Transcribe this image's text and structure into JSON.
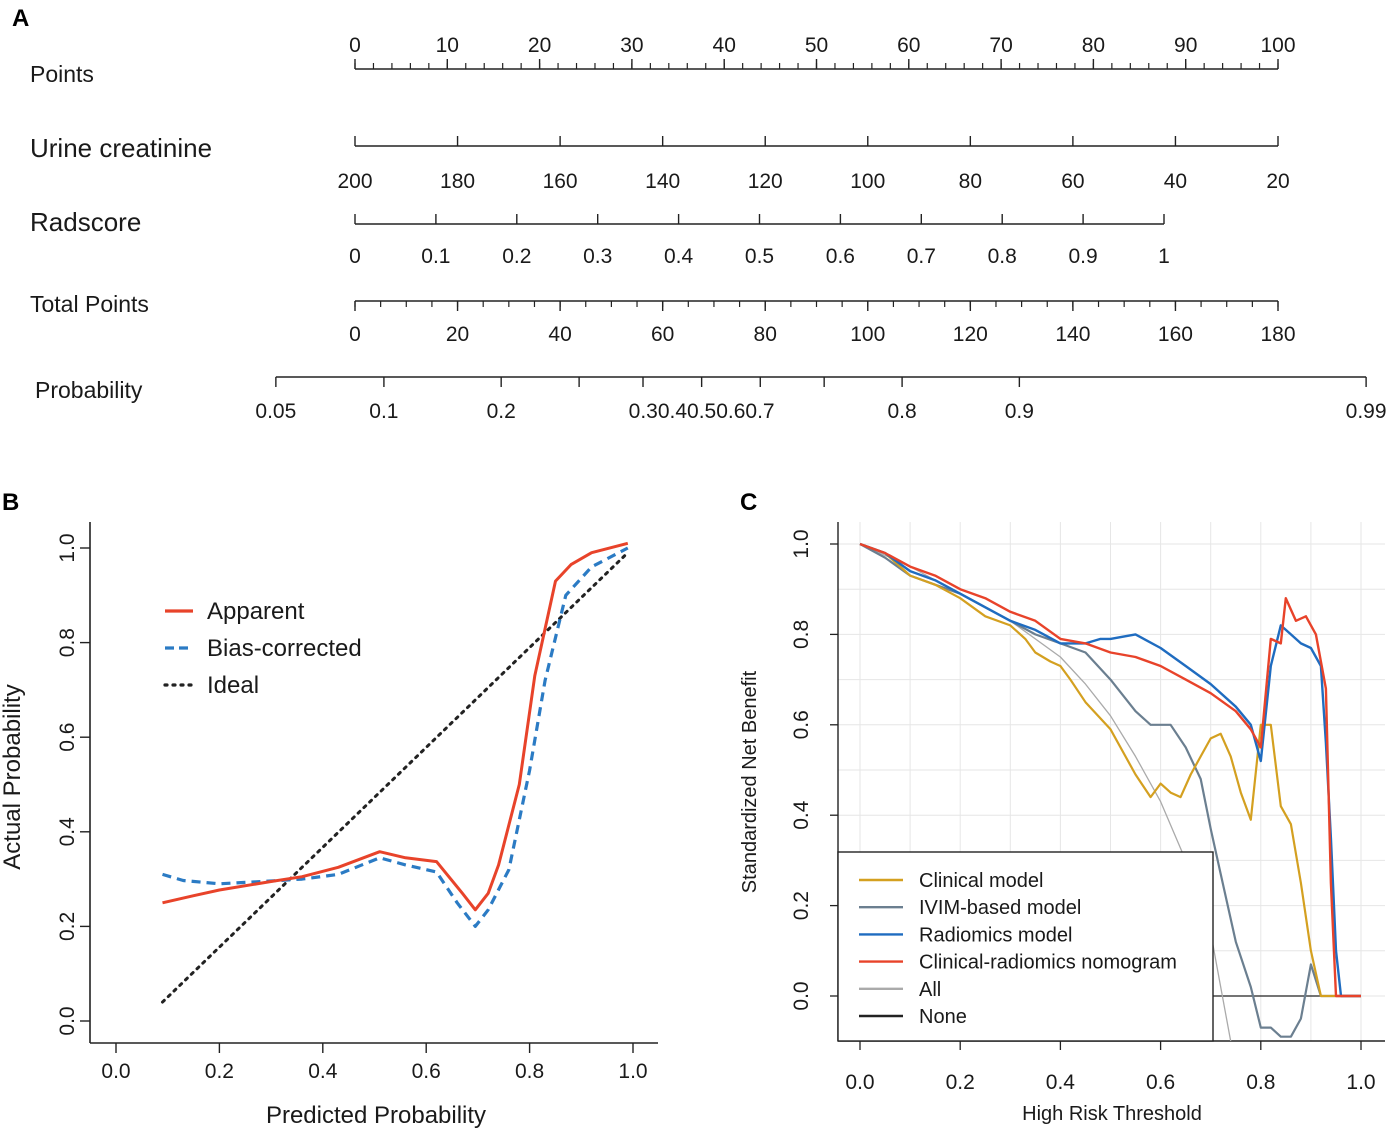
{
  "panels": {
    "a_label": "A",
    "b_label": "B",
    "c_label": "C"
  },
  "chart_data": [
    {
      "id": "A",
      "type": "nomogram",
      "rows": [
        {
          "name": "Points",
          "ticks": [
            {
              "v": 0,
              "label": "0"
            },
            {
              "v": 10,
              "label": "10"
            },
            {
              "v": 20,
              "label": "20"
            },
            {
              "v": 30,
              "label": "30"
            },
            {
              "v": 40,
              "label": "40"
            },
            {
              "v": 50,
              "label": "50"
            },
            {
              "v": 60,
              "label": "60"
            },
            {
              "v": 70,
              "label": "70"
            },
            {
              "v": 80,
              "label": "80"
            },
            {
              "v": 90,
              "label": "90"
            },
            {
              "v": 100,
              "label": "100"
            }
          ],
          "minor_step": 2
        },
        {
          "name": "Urine creatinine",
          "ticks": [
            {
              "v": 200,
              "label": "200"
            },
            {
              "v": 180,
              "label": "180"
            },
            {
              "v": 160,
              "label": "160"
            },
            {
              "v": 140,
              "label": "140"
            },
            {
              "v": 120,
              "label": "120"
            },
            {
              "v": 100,
              "label": "100"
            },
            {
              "v": 80,
              "label": "80"
            },
            {
              "v": 60,
              "label": "60"
            },
            {
              "v": 40,
              "label": "40"
            },
            {
              "v": 20,
              "label": "20"
            }
          ]
        },
        {
          "name": "Radscore",
          "ticks": [
            {
              "v": 0,
              "label": "0"
            },
            {
              "v": 0.1,
              "label": "0.1"
            },
            {
              "v": 0.2,
              "label": "0.2"
            },
            {
              "v": 0.3,
              "label": "0.3"
            },
            {
              "v": 0.4,
              "label": "0.4"
            },
            {
              "v": 0.5,
              "label": "0.5"
            },
            {
              "v": 0.6,
              "label": "0.6"
            },
            {
              "v": 0.7,
              "label": "0.7"
            },
            {
              "v": 0.8,
              "label": "0.8"
            },
            {
              "v": 0.9,
              "label": "0.9"
            },
            {
              "v": 1,
              "label": "1"
            }
          ]
        },
        {
          "name": "Total Points",
          "ticks": [
            {
              "v": 0,
              "label": "0"
            },
            {
              "v": 20,
              "label": "20"
            },
            {
              "v": 40,
              "label": "40"
            },
            {
              "v": 60,
              "label": "60"
            },
            {
              "v": 80,
              "label": "80"
            },
            {
              "v": 100,
              "label": "100"
            },
            {
              "v": 120,
              "label": "120"
            },
            {
              "v": 140,
              "label": "140"
            },
            {
              "v": 160,
              "label": "160"
            },
            {
              "v": 180,
              "label": "180"
            }
          ],
          "minor_step": 5
        },
        {
          "name": "Probability",
          "ticks": [
            {
              "p": 0.05,
              "label": "0.05"
            },
            {
              "p": 0.1,
              "label": "0.1"
            },
            {
              "p": 0.2,
              "label": "0.2"
            },
            {
              "p": 0.3,
              "label": "0.3"
            },
            {
              "p": 0.4,
              "label": "0.4"
            },
            {
              "p": 0.5,
              "label": "0.5"
            },
            {
              "p": 0.6,
              "label": "0.6"
            },
            {
              "p": 0.7,
              "label": "0.7"
            },
            {
              "p": 0.8,
              "label": "0.8"
            },
            {
              "p": 0.9,
              "label": "0.9"
            },
            {
              "p": 0.99,
              "label": "0.99"
            }
          ],
          "label_text": [
            "0.05",
            "0.1",
            "0.2",
            "0.30.40.50.60.7",
            "0.8",
            "0.9",
            "0.99"
          ]
        }
      ]
    },
    {
      "id": "B",
      "type": "line",
      "title": "",
      "xlabel": "Predicted Probability",
      "ylabel": "Actual Probability",
      "xlim": [
        0,
        1
      ],
      "ylim": [
        0,
        1
      ],
      "xticks": [
        "0.0",
        "0.2",
        "0.4",
        "0.6",
        "0.8",
        "1.0"
      ],
      "yticks": [
        "0.0",
        "0.2",
        "0.4",
        "0.6",
        "0.8",
        "1.0"
      ],
      "legend_position": "top-left",
      "series": [
        {
          "name": "Apparent",
          "color": "#e8432a",
          "style": "solid",
          "points": [
            [
              0.09,
              0.25
            ],
            [
              0.15,
              0.265
            ],
            [
              0.2,
              0.277
            ],
            [
              0.3,
              0.295
            ],
            [
              0.36,
              0.305
            ],
            [
              0.43,
              0.325
            ],
            [
              0.51,
              0.358
            ],
            [
              0.56,
              0.345
            ],
            [
              0.62,
              0.337
            ],
            [
              0.67,
              0.27
            ],
            [
              0.695,
              0.235
            ],
            [
              0.72,
              0.27
            ],
            [
              0.74,
              0.33
            ],
            [
              0.78,
              0.5
            ],
            [
              0.81,
              0.73
            ],
            [
              0.85,
              0.93
            ],
            [
              0.88,
              0.965
            ],
            [
              0.92,
              0.99
            ],
            [
              0.99,
              1.01
            ]
          ]
        },
        {
          "name": "Bias-corrected",
          "color": "#2b7bc4",
          "style": "dashed",
          "points": [
            [
              0.09,
              0.31
            ],
            [
              0.13,
              0.297
            ],
            [
              0.2,
              0.29
            ],
            [
              0.3,
              0.296
            ],
            [
              0.36,
              0.3
            ],
            [
              0.43,
              0.31
            ],
            [
              0.51,
              0.345
            ],
            [
              0.56,
              0.33
            ],
            [
              0.62,
              0.315
            ],
            [
              0.66,
              0.25
            ],
            [
              0.695,
              0.2
            ],
            [
              0.72,
              0.235
            ],
            [
              0.76,
              0.32
            ],
            [
              0.8,
              0.53
            ],
            [
              0.83,
              0.72
            ],
            [
              0.87,
              0.9
            ],
            [
              0.92,
              0.96
            ],
            [
              0.99,
              1.0
            ]
          ]
        },
        {
          "name": "Ideal",
          "color": "#222222",
          "style": "dotted",
          "points": [
            [
              0.09,
              0.04
            ],
            [
              0.99,
              0.99
            ]
          ]
        }
      ]
    },
    {
      "id": "C",
      "type": "line",
      "title": "",
      "xlabel": "High Risk Threshold",
      "ylabel": "Standardized Net Benefit",
      "xlim": [
        0,
        1
      ],
      "ylim": [
        -0.1,
        1.0
      ],
      "xticks": [
        "0.0",
        "0.2",
        "0.4",
        "0.6",
        "0.8",
        "1.0"
      ],
      "yticks": [
        "0.0",
        "0.2",
        "0.4",
        "0.6",
        "0.8",
        "1.0"
      ],
      "grid": true,
      "legend_position": "bottom-left",
      "series": [
        {
          "name": "Clinical model",
          "color": "#d4a020",
          "points": [
            [
              0,
              1.0
            ],
            [
              0.05,
              0.98
            ],
            [
              0.1,
              0.93
            ],
            [
              0.15,
              0.91
            ],
            [
              0.2,
              0.88
            ],
            [
              0.25,
              0.84
            ],
            [
              0.3,
              0.82
            ],
            [
              0.33,
              0.79
            ],
            [
              0.35,
              0.76
            ],
            [
              0.38,
              0.74
            ],
            [
              0.4,
              0.73
            ],
            [
              0.42,
              0.7
            ],
            [
              0.45,
              0.65
            ],
            [
              0.5,
              0.59
            ],
            [
              0.52,
              0.55
            ],
            [
              0.55,
              0.49
            ],
            [
              0.58,
              0.44
            ],
            [
              0.6,
              0.47
            ],
            [
              0.62,
              0.45
            ],
            [
              0.64,
              0.44
            ],
            [
              0.66,
              0.49
            ],
            [
              0.68,
              0.53
            ],
            [
              0.7,
              0.57
            ],
            [
              0.72,
              0.58
            ],
            [
              0.74,
              0.53
            ],
            [
              0.76,
              0.45
            ],
            [
              0.78,
              0.39
            ],
            [
              0.8,
              0.6
            ],
            [
              0.82,
              0.6
            ],
            [
              0.84,
              0.42
            ],
            [
              0.86,
              0.38
            ],
            [
              0.88,
              0.25
            ],
            [
              0.9,
              0.1
            ],
            [
              0.92,
              0.0
            ],
            [
              0.95,
              0.0
            ],
            [
              1.0,
              0.0
            ]
          ]
        },
        {
          "name": "IVIM-based model",
          "color": "#6b7f90",
          "points": [
            [
              0,
              1.0
            ],
            [
              0.05,
              0.97
            ],
            [
              0.1,
              0.93
            ],
            [
              0.15,
              0.91
            ],
            [
              0.2,
              0.89
            ],
            [
              0.25,
              0.86
            ],
            [
              0.3,
              0.83
            ],
            [
              0.35,
              0.8
            ],
            [
              0.4,
              0.78
            ],
            [
              0.45,
              0.76
            ],
            [
              0.5,
              0.7
            ],
            [
              0.55,
              0.63
            ],
            [
              0.58,
              0.6
            ],
            [
              0.6,
              0.6
            ],
            [
              0.62,
              0.6
            ],
            [
              0.65,
              0.55
            ],
            [
              0.68,
              0.48
            ],
            [
              0.7,
              0.37
            ],
            [
              0.72,
              0.27
            ],
            [
              0.75,
              0.12
            ],
            [
              0.78,
              0.02
            ],
            [
              0.8,
              -0.07
            ],
            [
              0.82,
              -0.07
            ],
            [
              0.84,
              -0.09
            ],
            [
              0.86,
              -0.09
            ],
            [
              0.88,
              -0.05
            ],
            [
              0.9,
              0.07
            ],
            [
              0.92,
              0.0
            ],
            [
              1.0,
              0.0
            ]
          ]
        },
        {
          "name": "Radiomics model",
          "color": "#1f6cc0",
          "points": [
            [
              0,
              1.0
            ],
            [
              0.05,
              0.98
            ],
            [
              0.1,
              0.94
            ],
            [
              0.15,
              0.92
            ],
            [
              0.2,
              0.89
            ],
            [
              0.25,
              0.86
            ],
            [
              0.3,
              0.83
            ],
            [
              0.35,
              0.81
            ],
            [
              0.4,
              0.78
            ],
            [
              0.45,
              0.78
            ],
            [
              0.48,
              0.79
            ],
            [
              0.5,
              0.79
            ],
            [
              0.55,
              0.8
            ],
            [
              0.6,
              0.77
            ],
            [
              0.65,
              0.73
            ],
            [
              0.7,
              0.69
            ],
            [
              0.75,
              0.64
            ],
            [
              0.78,
              0.6
            ],
            [
              0.8,
              0.52
            ],
            [
              0.82,
              0.73
            ],
            [
              0.84,
              0.82
            ],
            [
              0.86,
              0.8
            ],
            [
              0.88,
              0.78
            ],
            [
              0.9,
              0.77
            ],
            [
              0.92,
              0.73
            ],
            [
              0.93,
              0.56
            ],
            [
              0.94,
              0.35
            ],
            [
              0.95,
              0.1
            ],
            [
              0.96,
              0.0
            ],
            [
              1.0,
              0.0
            ]
          ]
        },
        {
          "name": "Clinical-radiomics nomogram",
          "color": "#e8432a",
          "points": [
            [
              0,
              1.0
            ],
            [
              0.05,
              0.98
            ],
            [
              0.1,
              0.95
            ],
            [
              0.15,
              0.93
            ],
            [
              0.2,
              0.9
            ],
            [
              0.25,
              0.88
            ],
            [
              0.3,
              0.85
            ],
            [
              0.35,
              0.83
            ],
            [
              0.4,
              0.79
            ],
            [
              0.45,
              0.78
            ],
            [
              0.5,
              0.76
            ],
            [
              0.55,
              0.75
            ],
            [
              0.6,
              0.73
            ],
            [
              0.65,
              0.7
            ],
            [
              0.7,
              0.67
            ],
            [
              0.75,
              0.63
            ],
            [
              0.78,
              0.59
            ],
            [
              0.8,
              0.55
            ],
            [
              0.82,
              0.79
            ],
            [
              0.84,
              0.78
            ],
            [
              0.85,
              0.88
            ],
            [
              0.87,
              0.83
            ],
            [
              0.89,
              0.84
            ],
            [
              0.91,
              0.8
            ],
            [
              0.93,
              0.68
            ],
            [
              0.94,
              0.25
            ],
            [
              0.95,
              0.0
            ],
            [
              1.0,
              0.0
            ]
          ]
        },
        {
          "name": "All",
          "color": "#aaaaaa",
          "points": [
            [
              0,
              1.0
            ],
            [
              0.1,
              0.95
            ],
            [
              0.2,
              0.89
            ],
            [
              0.3,
              0.83
            ],
            [
              0.4,
              0.75
            ],
            [
              0.45,
              0.69
            ],
            [
              0.5,
              0.62
            ],
            [
              0.55,
              0.53
            ],
            [
              0.6,
              0.43
            ],
            [
              0.65,
              0.3
            ],
            [
              0.7,
              0.14
            ],
            [
              0.74,
              -0.1
            ]
          ]
        },
        {
          "name": "None",
          "color": "#222222",
          "points": [
            [
              0,
              0.0
            ],
            [
              1.0,
              0.0
            ]
          ]
        }
      ]
    }
  ]
}
